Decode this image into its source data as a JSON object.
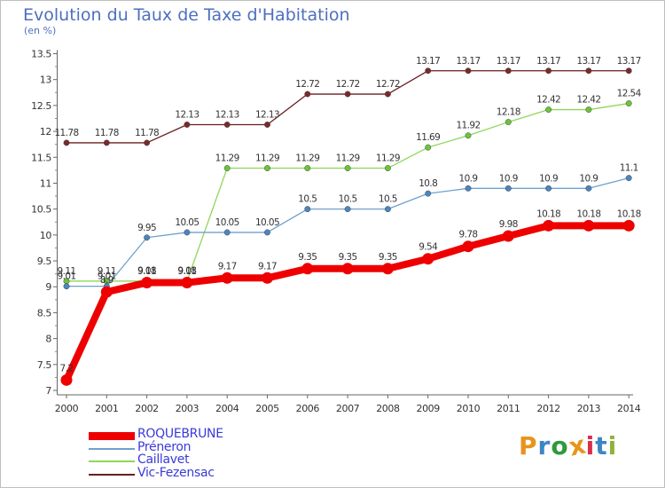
{
  "title": "Evolution du Taux de Taxe d'Habitation",
  "subtitle": "(en %)",
  "brand": {
    "letters": [
      "P",
      "r",
      "o",
      "x",
      "i",
      "t",
      "i"
    ],
    "letter_colors": [
      "#e8941c",
      "#3d86c6",
      "#2f9a3c",
      "#e8941c",
      "#d8304a",
      "#3d86c6",
      "#8fb23a"
    ]
  },
  "chart_data": {
    "type": "line",
    "title": "Evolution du Taux de Taxe d'Habitation",
    "ylabel": "(en %)",
    "xlabel": "",
    "x": [
      "2000",
      "2001",
      "2002",
      "2003",
      "2004",
      "2005",
      "2006",
      "2007",
      "2008",
      "2009",
      "2010",
      "2011",
      "2012",
      "2013",
      "2014"
    ],
    "ylim": [
      7,
      13.5
    ],
    "yticks": [
      "7",
      "7.5",
      "8",
      "8.5",
      "9",
      "9.5",
      "10",
      "10.5",
      "11",
      "11.5",
      "12",
      "12.5",
      "13",
      "13.5"
    ],
    "grid": false,
    "legend_position": "bottom-left",
    "series": [
      {
        "name": "Vic-Fezensac",
        "color": "#6b1e1e",
        "point_color": "#7a2a2a",
        "values": [
          11.78,
          11.78,
          11.78,
          12.13,
          12.13,
          12.13,
          12.72,
          12.72,
          12.72,
          13.17,
          13.17,
          13.17,
          13.17,
          13.17,
          13.17
        ],
        "labels": [
          "11.78",
          "11.78",
          "11.78",
          "12.13",
          "12.13",
          "12.13",
          "12.72",
          "12.72",
          "12.72",
          "13.17",
          "13.17",
          "13.17",
          "13.17",
          "13.17",
          "13.17"
        ]
      },
      {
        "name": "Caillavet",
        "color": "#8fd65a",
        "point_color": "#6cc43a",
        "values": [
          9.11,
          9.11,
          9.11,
          9.11,
          11.29,
          11.29,
          11.29,
          11.29,
          11.29,
          11.69,
          11.92,
          12.18,
          12.42,
          12.42,
          12.54
        ],
        "labels": [
          "9.11",
          "9.11",
          "9.11",
          "9.11",
          "11.29",
          "11.29",
          "11.29",
          "11.29",
          "11.29",
          "11.69",
          "11.92",
          "12.18",
          "12.42",
          "12.42",
          "12.54"
        ]
      },
      {
        "name": "Préneron",
        "color": "#6fa0cc",
        "point_color": "#4a86c0",
        "values": [
          9.01,
          9.01,
          9.95,
          10.05,
          10.05,
          10.05,
          10.5,
          10.5,
          10.5,
          10.8,
          10.9,
          10.9,
          10.9,
          10.9,
          11.1
        ],
        "labels": [
          "9.01",
          "9.01",
          "9.95",
          "10.05",
          "10.05",
          "10.05",
          "10.5",
          "10.5",
          "10.5",
          "10.8",
          "10.9",
          "10.9",
          "10.9",
          "10.9",
          "11.1"
        ]
      },
      {
        "name": "ROQUEBRUNE",
        "color": "#ee0000",
        "point_color": "#ee0000",
        "values": [
          7.2,
          8.9,
          9.08,
          9.08,
          9.17,
          9.17,
          9.35,
          9.35,
          9.35,
          9.54,
          9.78,
          9.98,
          10.18,
          10.18,
          10.18
        ],
        "labels": [
          "7.2",
          "8.9",
          "9.08",
          "9.08",
          "9.17",
          "9.17",
          "9.35",
          "9.35",
          "9.35",
          "9.54",
          "9.78",
          "9.98",
          "10.18",
          "10.18",
          "10.18"
        ]
      }
    ],
    "legend": [
      {
        "name": "ROQUEBRUNE",
        "color": "#ee0000"
      },
      {
        "name": "Préneron",
        "color": "#6fa0cc"
      },
      {
        "name": "Caillavet",
        "color": "#8fd65a"
      },
      {
        "name": "Vic-Fezensac",
        "color": "#6b1e1e"
      }
    ],
    "legend_text_color": "#3a3ad8"
  }
}
